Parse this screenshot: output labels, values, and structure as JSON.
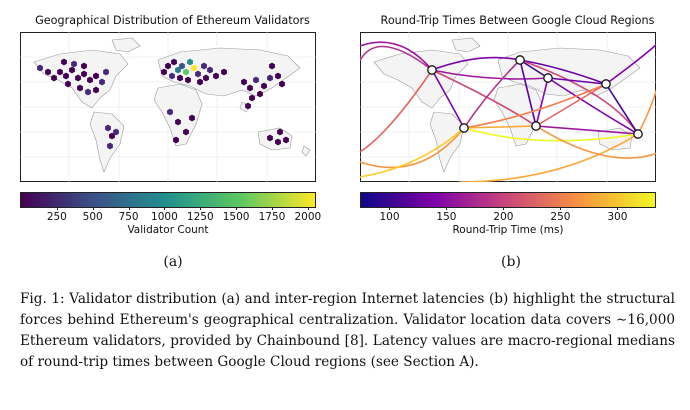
{
  "figure": {
    "panel_a": {
      "title": "Geographical Distribution of Ethereum Validators",
      "label": "(a)",
      "colorbar": {
        "label": "Validator Count",
        "ticks": [
          "250",
          "500",
          "750",
          "1000",
          "1250",
          "1500",
          "1750",
          "2000"
        ],
        "range": [
          0,
          2050
        ],
        "colormap": [
          "#440154",
          "#3b528b",
          "#21918c",
          "#5ec962",
          "#fde725"
        ]
      }
    },
    "panel_b": {
      "title": "Round-Trip Times Between Google Cloud Regions",
      "label": "(b)",
      "colorbar": {
        "label": "Round-Trip Time (ms)",
        "ticks": [
          "100",
          "150",
          "200",
          "250",
          "300"
        ],
        "range": [
          75,
          333
        ],
        "colormap": [
          "#0d0887",
          "#7e03a8",
          "#cc4778",
          "#f89540",
          "#f0f921"
        ]
      }
    },
    "caption": "Fig. 1: Validator distribution (a) and inter-region Internet latencies (b) highlight the structural forces behind Ethereum's geographical centralization. Validator location data covers ∼16,000 Ethereum validators, provided by Chainbound [8]. Latency values are macro-regional medians of round-trip times between Google Cloud regions (see Section A)."
  }
}
